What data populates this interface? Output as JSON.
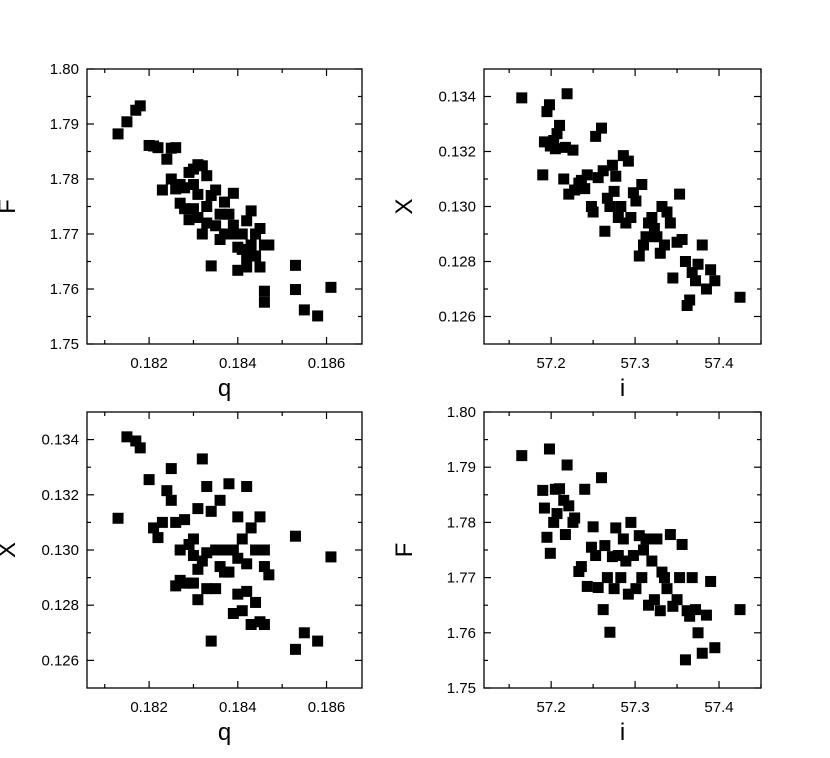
{
  "chart_data": [
    {
      "type": "scatter",
      "xlabel": "q",
      "ylabel": "F",
      "xlim": [
        0.1806,
        0.1868
      ],
      "ylim": [
        1.75,
        1.8
      ],
      "xticks": [
        0.182,
        0.184,
        0.186
      ],
      "yticks": [
        1.75,
        1.76,
        1.77,
        1.78,
        1.79,
        1.8
      ],
      "xtick_labels": [
        "0.182",
        "0.184",
        "0.186"
      ],
      "ytick_labels": [
        "1.75",
        "1.76",
        "1.77",
        "1.78",
        "1.79",
        "1.80"
      ],
      "grid": false,
      "x": [
        0.1813,
        0.1815,
        0.1817,
        0.1818,
        0.182,
        0.1821,
        0.1822,
        0.1823,
        0.1824,
        0.1825,
        0.1825,
        0.1826,
        0.1826,
        0.1827,
        0.1827,
        0.1828,
        0.1828,
        0.1829,
        0.1829,
        0.183,
        0.183,
        0.183,
        0.1831,
        0.1831,
        0.1831,
        0.1832,
        0.1832,
        0.1833,
        0.1833,
        0.1833,
        0.1834,
        0.1834,
        0.1835,
        0.1835,
        0.1836,
        0.1836,
        0.1837,
        0.1837,
        0.1838,
        0.1838,
        0.1839,
        0.1839,
        0.184,
        0.184,
        0.184,
        0.1841,
        0.1841,
        0.1842,
        0.1842,
        0.1842,
        0.1843,
        0.1843,
        0.1844,
        0.1844,
        0.1845,
        0.1845,
        0.1846,
        0.1846,
        0.1846,
        0.1847,
        0.1853,
        0.1853,
        0.1855,
        0.1858,
        0.1861
      ],
      "y": [
        1.7882,
        1.7904,
        1.7925,
        1.7933,
        1.7861,
        1.786,
        1.7857,
        1.778,
        1.7836,
        1.7856,
        1.78,
        1.7857,
        1.7782,
        1.779,
        1.7756,
        1.7784,
        1.7746,
        1.7812,
        1.7726,
        1.7818,
        1.779,
        1.7746,
        1.7826,
        1.7772,
        1.773,
        1.7824,
        1.77,
        1.7806,
        1.775,
        1.772,
        1.777,
        1.7642,
        1.778,
        1.7715,
        1.7736,
        1.769,
        1.7758,
        1.77,
        1.7736,
        1.77,
        1.7774,
        1.7716,
        1.7676,
        1.7634,
        1.77,
        1.77,
        1.7672,
        1.7724,
        1.766,
        1.764,
        1.7742,
        1.768,
        1.77,
        1.766,
        1.771,
        1.764,
        1.7596,
        1.7576,
        1.768,
        1.768,
        1.7643,
        1.7599,
        1.7562,
        1.7551,
        1.7603
      ]
    },
    {
      "type": "scatter",
      "xlabel": "i",
      "ylabel": "X",
      "xlim": [
        57.12,
        57.45
      ],
      "ylim": [
        0.125,
        0.135
      ],
      "xticks": [
        57.2,
        57.3,
        57.4
      ],
      "yticks": [
        0.126,
        0.128,
        0.13,
        0.132,
        0.134
      ],
      "xtick_labels": [
        "57.2",
        "57.3",
        "57.4"
      ],
      "ytick_labels": [
        "0.126",
        "0.128",
        "0.130",
        "0.132",
        "0.134"
      ],
      "grid": false,
      "x": [
        57.165,
        57.19,
        57.192,
        57.195,
        57.198,
        57.199,
        57.203,
        57.205,
        57.207,
        57.21,
        57.215,
        57.217,
        57.219,
        57.221,
        57.226,
        57.228,
        57.233,
        57.236,
        57.24,
        57.243,
        57.248,
        57.25,
        57.253,
        57.256,
        57.26,
        57.262,
        57.264,
        57.267,
        57.27,
        57.273,
        57.275,
        57.277,
        57.28,
        57.283,
        57.286,
        57.289,
        57.292,
        57.295,
        57.298,
        57.301,
        57.305,
        57.308,
        57.31,
        57.313,
        57.316,
        57.32,
        57.323,
        57.326,
        57.33,
        57.332,
        57.335,
        57.338,
        57.342,
        57.345,
        57.35,
        57.353,
        57.356,
        57.36,
        57.362,
        57.365,
        57.368,
        57.372,
        57.375,
        57.38,
        57.385,
        57.39,
        57.395,
        57.425
      ],
      "y": [
        0.13395,
        0.13115,
        0.13235,
        0.13345,
        0.1337,
        0.1322,
        0.1324,
        0.1321,
        0.13265,
        0.13295,
        0.131,
        0.13215,
        0.1341,
        0.13045,
        0.13205,
        0.1306,
        0.13085,
        0.13095,
        0.13065,
        0.13115,
        0.13,
        0.1298,
        0.13255,
        0.13105,
        0.13285,
        0.1313,
        0.1291,
        0.1303,
        0.13,
        0.1315,
        0.13055,
        0.1311,
        0.1296,
        0.13,
        0.13185,
        0.1294,
        0.13165,
        0.1296,
        0.1305,
        0.1302,
        0.1282,
        0.1308,
        0.1286,
        0.1289,
        0.1294,
        0.1296,
        0.1292,
        0.1289,
        0.1283,
        0.13,
        0.1286,
        0.1298,
        0.1294,
        0.1274,
        0.1287,
        0.13045,
        0.1288,
        0.128,
        0.1264,
        0.1266,
        0.1276,
        0.1273,
        0.1279,
        0.1286,
        0.127,
        0.1277,
        0.1273,
        0.1267
      ]
    },
    {
      "type": "scatter",
      "xlabel": "q",
      "ylabel": "X",
      "xlim": [
        0.1806,
        0.1868
      ],
      "ylim": [
        0.125,
        0.135
      ],
      "xticks": [
        0.182,
        0.184,
        0.186
      ],
      "yticks": [
        0.126,
        0.128,
        0.13,
        0.132,
        0.134
      ],
      "xtick_labels": [
        "0.182",
        "0.184",
        "0.186"
      ],
      "ytick_labels": [
        "0.126",
        "0.128",
        "0.130",
        "0.132",
        "0.134"
      ],
      "grid": false,
      "x": [
        0.1813,
        0.1815,
        0.1817,
        0.1818,
        0.182,
        0.1821,
        0.1822,
        0.1823,
        0.1824,
        0.1825,
        0.1825,
        0.1826,
        0.1826,
        0.1827,
        0.1827,
        0.1828,
        0.1828,
        0.1829,
        0.1829,
        0.183,
        0.183,
        0.183,
        0.1831,
        0.1831,
        0.1831,
        0.1832,
        0.1832,
        0.1833,
        0.1833,
        0.1833,
        0.1834,
        0.1834,
        0.1835,
        0.1835,
        0.1836,
        0.1836,
        0.1837,
        0.1837,
        0.1838,
        0.1838,
        0.1839,
        0.1839,
        0.184,
        0.184,
        0.184,
        0.1841,
        0.1841,
        0.1842,
        0.1842,
        0.1842,
        0.1843,
        0.1843,
        0.1844,
        0.1844,
        0.1845,
        0.1845,
        0.1846,
        0.1846,
        0.1846,
        0.1847,
        0.1853,
        0.1853,
        0.1855,
        0.1858,
        0.1861
      ],
      "y": [
        0.13115,
        0.1341,
        0.13395,
        0.1337,
        0.13255,
        0.1308,
        0.13045,
        0.131,
        0.13215,
        0.13295,
        0.1318,
        0.131,
        0.1287,
        0.13,
        0.1289,
        0.1311,
        0.1288,
        0.1302,
        0.1288,
        0.1304,
        0.1298,
        0.1288,
        0.1315,
        0.1293,
        0.1282,
        0.1333,
        0.1296,
        0.1323,
        0.1286,
        0.1299,
        0.1314,
        0.1267,
        0.13,
        0.1286,
        0.1318,
        0.1294,
        0.13,
        0.1292,
        0.1324,
        0.1292,
        0.13,
        0.1277,
        0.1312,
        0.1284,
        0.1297,
        0.1304,
        0.1278,
        0.1323,
        0.1285,
        0.1295,
        0.1308,
        0.1273,
        0.13,
        0.1281,
        0.1312,
        0.1274,
        0.13,
        0.1294,
        0.1273,
        0.1291,
        0.1305,
        0.1264,
        0.127,
        0.1267,
        0.12975
      ]
    },
    {
      "type": "scatter",
      "xlabel": "i",
      "ylabel": "F",
      "xlim": [
        57.12,
        57.45
      ],
      "ylim": [
        1.75,
        1.8
      ],
      "xticks": [
        57.2,
        57.3,
        57.4
      ],
      "yticks": [
        1.75,
        1.76,
        1.77,
        1.78,
        1.79,
        1.8
      ],
      "xtick_labels": [
        "57.2",
        "57.3",
        "57.4"
      ],
      "ytick_labels": [
        "1.75",
        "1.76",
        "1.77",
        "1.78",
        "1.79",
        "1.80"
      ],
      "grid": false,
      "x": [
        57.165,
        57.19,
        57.192,
        57.195,
        57.198,
        57.199,
        57.203,
        57.205,
        57.207,
        57.21,
        57.215,
        57.217,
        57.219,
        57.221,
        57.226,
        57.228,
        57.233,
        57.236,
        57.24,
        57.243,
        57.248,
        57.25,
        57.253,
        57.256,
        57.26,
        57.262,
        57.264,
        57.267,
        57.27,
        57.273,
        57.275,
        57.277,
        57.28,
        57.283,
        57.286,
        57.289,
        57.292,
        57.295,
        57.298,
        57.301,
        57.305,
        57.308,
        57.31,
        57.313,
        57.316,
        57.32,
        57.323,
        57.326,
        57.33,
        57.332,
        57.335,
        57.338,
        57.342,
        57.345,
        57.35,
        57.353,
        57.356,
        57.36,
        57.362,
        57.365,
        57.368,
        57.372,
        57.375,
        57.38,
        57.385,
        57.39,
        57.395,
        57.425
      ],
      "y": [
        1.7921,
        1.7858,
        1.7826,
        1.7773,
        1.7933,
        1.7744,
        1.78,
        1.786,
        1.7816,
        1.7861,
        1.784,
        1.7778,
        1.7904,
        1.783,
        1.78,
        1.7808,
        1.7711,
        1.772,
        1.786,
        1.7684,
        1.7755,
        1.7792,
        1.774,
        1.7682,
        1.7881,
        1.7642,
        1.7758,
        1.77,
        1.7601,
        1.7738,
        1.768,
        1.779,
        1.774,
        1.77,
        1.777,
        1.773,
        1.767,
        1.78,
        1.774,
        1.768,
        1.7776,
        1.77,
        1.775,
        1.777,
        1.765,
        1.773,
        1.766,
        1.777,
        1.764,
        1.771,
        1.77,
        1.768,
        1.7778,
        1.7648,
        1.766,
        1.77,
        1.776,
        1.7551,
        1.764,
        1.763,
        1.77,
        1.7642,
        1.76,
        1.7563,
        1.7632,
        1.7693,
        1.7573,
        1.7642
      ]
    }
  ]
}
